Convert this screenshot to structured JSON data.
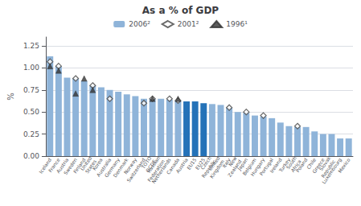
{
  "chart_data": {
    "type": "bar",
    "title": "As a % of GDP",
    "ylabel": "%",
    "categories": [
      "Iceland",
      "France",
      "Austria",
      "Sweden",
      "Finland",
      "United\nStates",
      "Korea",
      "Australia",
      "Germany",
      "Denmark",
      "Norway",
      "Switzerland",
      "TOTO\nOCDE",
      "Russian\nFederation",
      "Netherlands",
      "Canada",
      "Austria",
      "EU15",
      "EU25",
      "Czech\nRepublic",
      "United\nKingdom",
      "Italy",
      "New\nZealand",
      "Japan",
      "Belgium",
      "Hungary",
      "Portugal",
      "Ireland",
      "Turkey",
      "South\nAfrica",
      "Poland",
      "Chile",
      "Greece",
      "Slovak\nRepublic",
      "Luxembourg",
      "Mexico"
    ],
    "series": [
      {
        "name": "2006²",
        "type": "bar",
        "color": "#8fb4d9",
        "colors": [
          "#8fb4d9",
          "#8fb4d9",
          "#8fb4d9",
          "#8fb4d9",
          "#8fb4d9",
          "#8fb4d9",
          "#8fb4d9",
          "#8fb4d9",
          "#8fb4d9",
          "#8fb4d9",
          "#8fb4d9",
          "#8fb4d9",
          "#8fb4d9",
          "#8fb4d9",
          "#8fb4d9",
          "#8fb4d9",
          "#2472b8",
          "#2472b8",
          "#2472b8",
          "#8fb4d9",
          "#8fb4d9",
          "#8fb4d9",
          "#8fb4d9",
          "#8fb4d9",
          "#8fb4d9",
          "#8fb4d9",
          "#8fb4d9",
          "#8fb4d9",
          "#8fb4d9",
          "#8fb4d9",
          "#8fb4d9",
          "#8fb4d9",
          "#8fb4d9",
          "#8fb4d9",
          "#8fb4d9",
          "#8fb4d9"
        ],
        "values": [
          1.13,
          1.02,
          0.89,
          0.88,
          0.85,
          0.8,
          0.78,
          0.75,
          0.73,
          0.7,
          0.68,
          0.65,
          0.65,
          0.65,
          0.64,
          0.63,
          0.62,
          0.62,
          0.6,
          0.59,
          0.58,
          0.55,
          0.5,
          0.49,
          0.46,
          0.45,
          0.43,
          0.38,
          0.34,
          0.33,
          0.33,
          0.28,
          0.25,
          0.25,
          0.2,
          0.2
        ]
      },
      {
        "name": "2001²",
        "type": "scatter",
        "marker": "open diamond",
        "color": "#444444",
        "values": [
          1.07,
          1.02,
          null,
          0.88,
          null,
          0.8,
          null,
          0.65,
          null,
          null,
          null,
          0.6,
          0.65,
          null,
          0.65,
          0.63,
          null,
          null,
          null,
          null,
          null,
          0.55,
          null,
          0.5,
          null,
          0.46,
          null,
          null,
          null,
          0.34,
          null,
          null,
          null,
          null,
          null,
          null
        ]
      },
      {
        "name": "1996¹",
        "type": "scatter",
        "marker": "triangle",
        "color": "#333333",
        "values": [
          1.02,
          0.97,
          null,
          0.71,
          0.88,
          0.75,
          null,
          null,
          null,
          null,
          null,
          null,
          0.65,
          null,
          null,
          0.65,
          null,
          null,
          null,
          null,
          null,
          null,
          null,
          null,
          null,
          null,
          null,
          null,
          null,
          null,
          null,
          null,
          null,
          null,
          null,
          null
        ]
      }
    ],
    "ylim": [
      0,
      1.35
    ],
    "yticks": [
      {
        "value": 0,
        "label": "0.00"
      },
      0.25,
      {
        "value": 0.5,
        "label": "0.50"
      },
      0.75,
      {
        "value": 1,
        "label": "1.00"
      },
      1.25
    ],
    "grid": true,
    "legend": "top"
  }
}
